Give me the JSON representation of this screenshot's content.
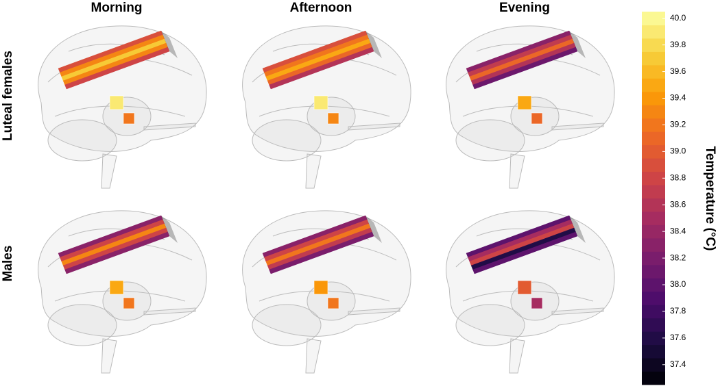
{
  "chart_data": {
    "type": "brain-panels",
    "columns": [
      "Morning",
      "Afternoon",
      "Evening"
    ],
    "rows": [
      "Luteal females",
      "Males"
    ],
    "panels": [
      [
        {
          "slab": [
            38.9,
            39.3,
            39.7,
            39.3,
            38.8
          ],
          "cubes": [
            39.9,
            39.2
          ]
        },
        {
          "slab": [
            38.9,
            39.2,
            39.5,
            39.1,
            38.6
          ],
          "cubes": [
            39.9,
            39.3
          ]
        },
        {
          "slab": [
            38.3,
            38.7,
            39.1,
            38.6,
            38.1
          ],
          "cubes": [
            39.5,
            39.1
          ]
        }
      ],
      [
        {
          "slab": [
            38.3,
            38.8,
            39.3,
            38.8,
            38.3
          ],
          "cubes": [
            39.5,
            39.2
          ]
        },
        {
          "slab": [
            38.3,
            38.8,
            39.2,
            38.7,
            38.2
          ],
          "cubes": [
            39.4,
            39.2
          ]
        },
        {
          "slab": [
            38.0,
            38.5,
            38.8,
            37.6,
            38.0
          ],
          "cubes": [
            39.0,
            38.5
          ]
        }
      ]
    ],
    "colorbar": {
      "label": "Temperature (°C)",
      "lim": [
        37.25,
        40.05
      ],
      "ticks": [
        {
          "value": 40,
          "label": "40.0"
        },
        39.8,
        39.6,
        39.4,
        39.2,
        {
          "value": 39,
          "label": "39.0"
        },
        38.8,
        38.6,
        38.4,
        38.2,
        {
          "value": 38,
          "label": "38.0"
        },
        37.8,
        37.6,
        37.4
      ],
      "colormap": [
        "#000004",
        "#1b0c41",
        "#4a0c6b",
        "#781c6d",
        "#a52c60",
        "#cf4446",
        "#ed6925",
        "#fb9b06",
        "#f7d13d",
        "#fcffa4"
      ]
    }
  }
}
